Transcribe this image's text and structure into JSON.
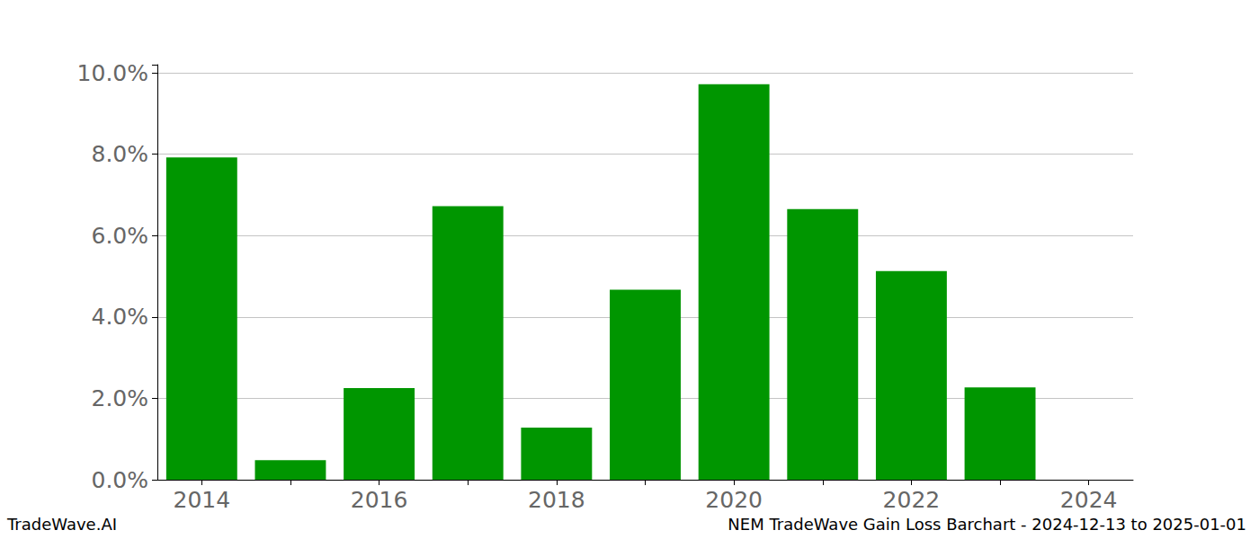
{
  "chart_data": {
    "type": "bar",
    "title": "NEM TradeWave Gain Loss Barchart - 2024-12-13 to 2025-01-01",
    "annotations": [
      "TradeWave.AI"
    ],
    "categories": [
      "2014",
      null,
      "2016",
      null,
      "2018",
      null,
      "2020",
      null,
      "2022",
      null,
      "2024"
    ],
    "values": [
      7.92,
      0.48,
      2.25,
      6.72,
      1.28,
      4.67,
      9.72,
      6.65,
      5.13,
      2.27,
      0
    ],
    "color": "#009600",
    "ylim": [
      0,
      10.2
    ],
    "yticks": [
      {
        "value": 0,
        "label": "0.0%"
      },
      {
        "value": 2,
        "label": "2.0%"
      },
      {
        "value": 4,
        "label": "4.0%"
      },
      {
        "value": 6,
        "label": "6.0%"
      },
      {
        "value": 8,
        "label": "8.0%"
      },
      {
        "value": 10,
        "label": "10.0%"
      }
    ],
    "grid": true
  }
}
